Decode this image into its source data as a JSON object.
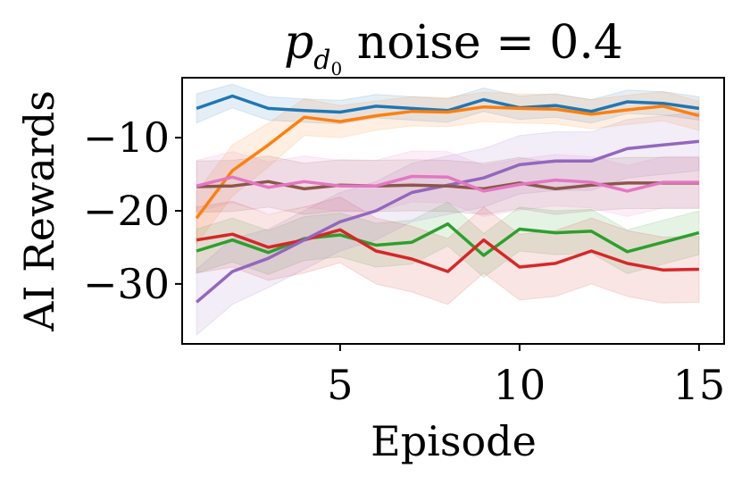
{
  "chart_data": {
    "type": "line",
    "title": {
      "var": "p",
      "sub": "d",
      "subsub": "0",
      "rest": " noise = 0.4"
    },
    "xlabel": "Episode",
    "ylabel": "AI Rewards",
    "xlim": [
      0.6,
      15.7
    ],
    "ylim": [
      -38.2,
      -1.8
    ],
    "xticks": [
      5,
      10,
      15
    ],
    "xtick_labels": [
      "5",
      "10",
      "15"
    ],
    "yticks": [
      -10,
      -20,
      -30
    ],
    "ytick_labels": [
      "−10",
      "−20",
      "−30"
    ],
    "grid": false,
    "legend": "none",
    "x": [
      1,
      2,
      3,
      4,
      5,
      6,
      7,
      8,
      9,
      10,
      11,
      12,
      13,
      14,
      15
    ],
    "series": [
      {
        "color": "#1f77b4",
        "values": [
          -6.0,
          -4.3,
          -6.0,
          -6.3,
          -6.5,
          -5.7,
          -6.0,
          -6.3,
          -4.8,
          -5.9,
          -5.6,
          -6.4,
          -5.1,
          -5.3,
          -6.0
        ],
        "band": [
          2.0,
          1.6,
          1.6,
          1.6,
          1.6,
          1.6,
          1.6,
          1.6,
          1.6,
          1.6,
          1.6,
          1.6,
          1.6,
          1.6,
          1.6
        ]
      },
      {
        "color": "#ff7f0e",
        "values": [
          -21.0,
          -14.5,
          -11.0,
          -7.2,
          -7.8,
          -7.0,
          -6.4,
          -6.5,
          -5.8,
          -6.0,
          -6.1,
          -6.8,
          -6.2,
          -5.7,
          -7.0
        ],
        "band": [
          3.5,
          3.5,
          3.0,
          2.5,
          2.2,
          2.0,
          2.0,
          2.0,
          2.0,
          2.0,
          2.0,
          2.0,
          2.0,
          2.0,
          2.0
        ]
      },
      {
        "color": "#2ca02c",
        "values": [
          -25.5,
          -24.0,
          -25.7,
          -23.8,
          -23.3,
          -24.7,
          -24.3,
          -21.8,
          -26.1,
          -22.5,
          -23.0,
          -22.8,
          -25.6,
          -24.3,
          -23.0
        ],
        "band": [
          3.0,
          3.0,
          3.0,
          3.0,
          3.0,
          3.0,
          3.0,
          3.0,
          3.0,
          3.0,
          3.0,
          3.0,
          3.0,
          3.0,
          3.0
        ]
      },
      {
        "color": "#d62728",
        "values": [
          -24.0,
          -23.2,
          -25.0,
          -24.0,
          -22.6,
          -25.5,
          -26.6,
          -28.3,
          -24.0,
          -27.7,
          -27.2,
          -25.5,
          -27.2,
          -28.1,
          -28.0
        ],
        "band": [
          4.5,
          4.5,
          4.5,
          4.5,
          4.5,
          4.5,
          4.5,
          4.5,
          4.5,
          4.5,
          4.5,
          4.5,
          4.5,
          4.5,
          4.5
        ]
      },
      {
        "color": "#9467bd",
        "values": [
          -32.5,
          -28.3,
          -26.5,
          -24.0,
          -21.5,
          -20.0,
          -17.5,
          -16.5,
          -15.5,
          -13.7,
          -13.2,
          -13.2,
          -11.5,
          -11.0,
          -10.5
        ],
        "band": [
          4.5,
          4.5,
          4.0,
          4.0,
          4.0,
          4.0,
          4.0,
          4.0,
          4.0,
          4.0,
          4.0,
          4.0,
          4.0,
          4.0,
          4.0
        ]
      },
      {
        "color": "#8c564b",
        "values": [
          -16.7,
          -16.6,
          -16.0,
          -17.0,
          -16.5,
          -16.6,
          -16.5,
          -16.6,
          -17.0,
          -16.2,
          -17.0,
          -16.5,
          -16.2,
          -16.2,
          -16.2
        ],
        "band": [
          3.5,
          3.5,
          3.5,
          3.5,
          3.5,
          3.5,
          3.5,
          3.5,
          3.5,
          3.5,
          3.5,
          3.5,
          3.5,
          3.5,
          3.5
        ]
      },
      {
        "color": "#e377c2",
        "values": [
          -16.6,
          -15.4,
          -16.8,
          -16.0,
          -16.6,
          -16.6,
          -15.3,
          -15.4,
          -17.3,
          -16.4,
          -15.8,
          -16.1,
          -17.3,
          -16.1,
          -16.1
        ],
        "band": [
          3.5,
          3.5,
          3.5,
          3.5,
          3.5,
          3.5,
          3.5,
          3.5,
          3.5,
          3.5,
          3.5,
          3.5,
          3.5,
          3.5,
          3.5
        ]
      }
    ]
  }
}
